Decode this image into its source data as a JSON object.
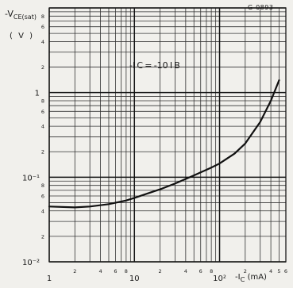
{
  "figure_id": "G-0893",
  "chart_data": {
    "type": "line",
    "y_label_prefix": "-V",
    "y_label_sub": "CE(sat)",
    "y_unit": "( V )",
    "x_label_prefix": "-I",
    "x_label_sub": "C",
    "x_unit": "(mA)",
    "annotation": "-I C = -10 I B",
    "x_scale": "log",
    "y_scale": "log",
    "xlim": [
      1,
      600
    ],
    "ylim": [
      0.01,
      10
    ],
    "grid": true,
    "x_major_ticks": [
      {
        "value": 1,
        "label": "1"
      },
      {
        "value": 10,
        "label": "10"
      },
      {
        "value": 100,
        "label": "10²"
      }
    ],
    "x_minor_ticks": [
      {
        "value": 2,
        "label": "2"
      },
      {
        "value": 4,
        "label": "4"
      },
      {
        "value": 6,
        "label": "6"
      },
      {
        "value": 8,
        "label": "8"
      },
      {
        "value": 20,
        "label": "2"
      },
      {
        "value": 40,
        "label": "4"
      },
      {
        "value": 60,
        "label": "6"
      },
      {
        "value": 80,
        "label": "8"
      },
      {
        "value": 200,
        "label": "2"
      },
      {
        "value": 400,
        "label": "4"
      },
      {
        "value": 500,
        "label": "5"
      },
      {
        "value": 600,
        "label": "6"
      }
    ],
    "y_major_ticks": [
      {
        "value": 0.01,
        "label": "10⁻²"
      },
      {
        "value": 0.1,
        "label": "10⁻¹"
      },
      {
        "value": 1,
        "label": "1"
      }
    ],
    "y_minor_ticks": [
      {
        "value": 0.02,
        "label": "2"
      },
      {
        "value": 0.04,
        "label": "4"
      },
      {
        "value": 0.06,
        "label": "6"
      },
      {
        "value": 0.08,
        "label": "8"
      },
      {
        "value": 0.2,
        "label": "2"
      },
      {
        "value": 0.4,
        "label": "4"
      },
      {
        "value": 0.6,
        "label": "6"
      },
      {
        "value": 0.8,
        "label": "8"
      },
      {
        "value": 2,
        "label": "2"
      },
      {
        "value": 4,
        "label": "4"
      },
      {
        "value": 6,
        "label": "6"
      },
      {
        "value": 8,
        "label": "8"
      }
    ],
    "series": [
      {
        "x": [
          1,
          2,
          3,
          5,
          8,
          10,
          20,
          30,
          50,
          80,
          100,
          150,
          200,
          300,
          400,
          500
        ],
        "y": [
          0.045,
          0.044,
          0.045,
          0.048,
          0.053,
          0.057,
          0.072,
          0.084,
          0.105,
          0.13,
          0.145,
          0.19,
          0.25,
          0.45,
          0.8,
          1.4
        ]
      }
    ]
  }
}
